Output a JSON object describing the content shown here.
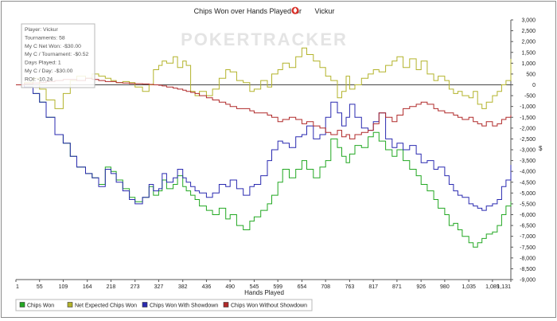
{
  "chart_data": {
    "type": "line",
    "title_prefix": "Chips Won over Hands Played for",
    "player_name": "Vickur",
    "watermark": "POKERTRACKER",
    "xlabel": "Hands Played",
    "xlim": [
      1,
      1131
    ],
    "x_ticks": [
      "1",
      "55",
      "109",
      "164",
      "218",
      "273",
      "327",
      "382",
      "436",
      "490",
      "545",
      "599",
      "654",
      "708",
      "763",
      "817",
      "871",
      "926",
      "980",
      "1,035",
      "1,089",
      "1,131"
    ],
    "ylim": [
      -9000,
      3000
    ],
    "y_ticks": [
      "3,000",
      "2,500",
      "2,000",
      "1,500",
      "1,000",
      "500",
      "0",
      "-500",
      "-1,000",
      "-1,500",
      "-2,000",
      "-2,500",
      "-3,000",
      "-3,500",
      "-4,000",
      "-4,500",
      "-5,000",
      "-5,500",
      "-6,000",
      "-6,500",
      "-7,000",
      "-7,500",
      "-8,000",
      "-8,500",
      "-9,000"
    ],
    "y_unit_symbol": "$",
    "grid": false,
    "legend_position": "bottom",
    "info_box": [
      "Player: Vickur",
      "Tournaments: 58",
      "My C Net Won: -$30.00",
      "My C / Tournament: -$0.52",
      "Days Played: 1",
      "My C / Day: -$30.00",
      "ROI: -10.24"
    ],
    "series": [
      {
        "name": "Chips Won",
        "color": "#22a822",
        "x": [
          1,
          20,
          40,
          55,
          70,
          90,
          109,
          125,
          140,
          160,
          175,
          190,
          205,
          218,
          230,
          245,
          260,
          273,
          290,
          305,
          315,
          327,
          335,
          345,
          360,
          370,
          382,
          390,
          400,
          410,
          420,
          436,
          450,
          465,
          480,
          490,
          505,
          520,
          535,
          545,
          560,
          575,
          585,
          599,
          610,
          625,
          640,
          654,
          665,
          680,
          695,
          708,
          720,
          735,
          745,
          755,
          763,
          775,
          790,
          805,
          817,
          830,
          845,
          860,
          871,
          885,
          900,
          915,
          926,
          940,
          955,
          965,
          980,
          990,
          1000,
          1010,
          1020,
          1035,
          1045,
          1055,
          1065,
          1075,
          1089,
          1100,
          1110,
          1120,
          1131
        ],
        "y": [
          0,
          -100,
          -400,
          -800,
          -1500,
          -2300,
          -2700,
          -3300,
          -3800,
          -4100,
          -4300,
          -4600,
          -3800,
          -4000,
          -4400,
          -4800,
          -5200,
          -5400,
          -5200,
          -4700,
          -5100,
          -4900,
          -4400,
          -4800,
          -4600,
          -4200,
          -4700,
          -4900,
          -5100,
          -5300,
          -5600,
          -5800,
          -6000,
          -5700,
          -6200,
          -6000,
          -6500,
          -6700,
          -6300,
          -6100,
          -5800,
          -5500,
          -5100,
          -4500,
          -3900,
          -4300,
          -3900,
          -3500,
          -3900,
          -4300,
          -3800,
          -3500,
          -2500,
          -2900,
          -3300,
          -3600,
          -3200,
          -2800,
          -2900,
          -2400,
          -2200,
          -2600,
          -3000,
          -3300,
          -3000,
          -3500,
          -3900,
          -4200,
          -4600,
          -4900,
          -5300,
          -5700,
          -6000,
          -6500,
          -6400,
          -6700,
          -7000,
          -7300,
          -7500,
          -7300,
          -7100,
          -6900,
          -6800,
          -6500,
          -6000,
          -5600,
          -5400
        ]
      },
      {
        "name": "Net Expected Chips Won",
        "color": "#b3b32b",
        "x": [
          1,
          20,
          40,
          55,
          70,
          90,
          109,
          125,
          140,
          160,
          175,
          190,
          205,
          218,
          230,
          245,
          260,
          273,
          290,
          305,
          315,
          327,
          335,
          345,
          360,
          370,
          382,
          390,
          400,
          410,
          420,
          436,
          450,
          465,
          480,
          490,
          505,
          520,
          535,
          545,
          560,
          575,
          585,
          599,
          610,
          625,
          640,
          654,
          665,
          680,
          695,
          708,
          720,
          735,
          745,
          755,
          763,
          775,
          790,
          805,
          817,
          830,
          845,
          860,
          871,
          885,
          900,
          915,
          926,
          940,
          955,
          965,
          980,
          990,
          1000,
          1010,
          1020,
          1035,
          1045,
          1055,
          1065,
          1075,
          1089,
          1100,
          1110,
          1120,
          1131
        ],
        "y": [
          0,
          100,
          300,
          -200,
          -700,
          -1100,
          -400,
          200,
          400,
          300,
          500,
          400,
          300,
          200,
          100,
          150,
          100,
          -100,
          -300,
          0,
          700,
          900,
          1100,
          1000,
          1300,
          800,
          1100,
          900,
          -300,
          -500,
          -300,
          -500,
          -200,
          300,
          700,
          600,
          200,
          100,
          -300,
          -200,
          200,
          -100,
          500,
          700,
          1000,
          800,
          1300,
          1700,
          1400,
          1100,
          800,
          400,
          200,
          -600,
          -300,
          400,
          -200,
          0,
          300,
          500,
          700,
          600,
          900,
          1100,
          1300,
          800,
          1200,
          700,
          1100,
          500,
          200,
          400,
          200,
          -200,
          -400,
          -300,
          -500,
          -600,
          -300,
          -900,
          -1100,
          -800,
          -500,
          -300,
          0,
          200,
          1200
        ]
      },
      {
        "name": "Chips Won With Showdown",
        "color": "#2a2ab0",
        "x": [
          1,
          20,
          40,
          55,
          70,
          90,
          109,
          125,
          140,
          160,
          175,
          190,
          205,
          218,
          230,
          245,
          260,
          273,
          290,
          305,
          315,
          327,
          335,
          345,
          360,
          370,
          382,
          390,
          400,
          410,
          420,
          436,
          450,
          465,
          480,
          490,
          505,
          520,
          535,
          545,
          560,
          575,
          585,
          599,
          610,
          625,
          640,
          654,
          665,
          680,
          695,
          708,
          720,
          735,
          745,
          755,
          763,
          775,
          790,
          805,
          817,
          830,
          845,
          860,
          871,
          885,
          900,
          915,
          926,
          940,
          955,
          965,
          980,
          990,
          1000,
          1010,
          1020,
          1035,
          1045,
          1055,
          1065,
          1075,
          1089,
          1100,
          1110,
          1120,
          1131
        ],
        "y": [
          0,
          -100,
          -400,
          -800,
          -1500,
          -2300,
          -2700,
          -3300,
          -3800,
          -4100,
          -4300,
          -4700,
          -3900,
          -4100,
          -4500,
          -4900,
          -5300,
          -5500,
          -5200,
          -4600,
          -4900,
          -4800,
          -4100,
          -4500,
          -4300,
          -3900,
          -4300,
          -4500,
          -4700,
          -4900,
          -5000,
          -5200,
          -5000,
          -4600,
          -4700,
          -4400,
          -4800,
          -5100,
          -4700,
          -4600,
          -4200,
          -3500,
          -3000,
          -2600,
          -2700,
          -2900,
          -2400,
          -2300,
          -1900,
          -2500,
          -2300,
          -1500,
          -800,
          -1300,
          -1900,
          -1500,
          -900,
          -1500,
          -2000,
          -2100,
          -1700,
          -1300,
          -2500,
          -2900,
          -2700,
          -3000,
          -2800,
          -3200,
          -3600,
          -3500,
          -3900,
          -3800,
          -4200,
          -4600,
          -4900,
          -5100,
          -5200,
          -5500,
          -5600,
          -5700,
          -5800,
          -5600,
          -5500,
          -5300,
          -4700,
          -4400,
          -3700
        ]
      },
      {
        "name": "Chips Won Without Showdown",
        "color": "#b02a2a",
        "x": [
          1,
          20,
          40,
          55,
          70,
          90,
          109,
          125,
          140,
          160,
          175,
          190,
          205,
          218,
          230,
          245,
          260,
          273,
          290,
          305,
          315,
          327,
          335,
          345,
          360,
          370,
          382,
          390,
          400,
          410,
          420,
          436,
          450,
          465,
          480,
          490,
          505,
          520,
          535,
          545,
          560,
          575,
          585,
          599,
          610,
          625,
          640,
          654,
          665,
          680,
          695,
          708,
          720,
          735,
          745,
          755,
          763,
          775,
          790,
          805,
          817,
          830,
          845,
          860,
          871,
          885,
          900,
          915,
          926,
          940,
          955,
          965,
          980,
          990,
          1000,
          1010,
          1020,
          1035,
          1045,
          1055,
          1065,
          1075,
          1089,
          1100,
          1110,
          1120,
          1131
        ],
        "y": [
          0,
          50,
          80,
          100,
          150,
          200,
          250,
          250,
          200,
          300,
          250,
          200,
          150,
          150,
          100,
          80,
          60,
          50,
          40,
          20,
          0,
          -20,
          -50,
          -100,
          -150,
          -200,
          -250,
          -300,
          -350,
          -400,
          -500,
          -600,
          -700,
          -800,
          -900,
          -1000,
          -1100,
          -1100,
          -1200,
          -1300,
          -1300,
          -1400,
          -1500,
          -1700,
          -1600,
          -1500,
          -1600,
          -1800,
          -1700,
          -1900,
          -2000,
          -2200,
          -2300,
          -2100,
          -2400,
          -2300,
          -2500,
          -2300,
          -2200,
          -2100,
          -1800,
          -1300,
          -1500,
          -1700,
          -1400,
          -1100,
          -1000,
          -900,
          -800,
          -900,
          -1100,
          -1200,
          -1300,
          -1300,
          -1400,
          -1500,
          -1600,
          -1500,
          -1700,
          -1800,
          -1900,
          -1700,
          -1900,
          -1800,
          -1600,
          -1500,
          -1400
        ]
      }
    ]
  }
}
